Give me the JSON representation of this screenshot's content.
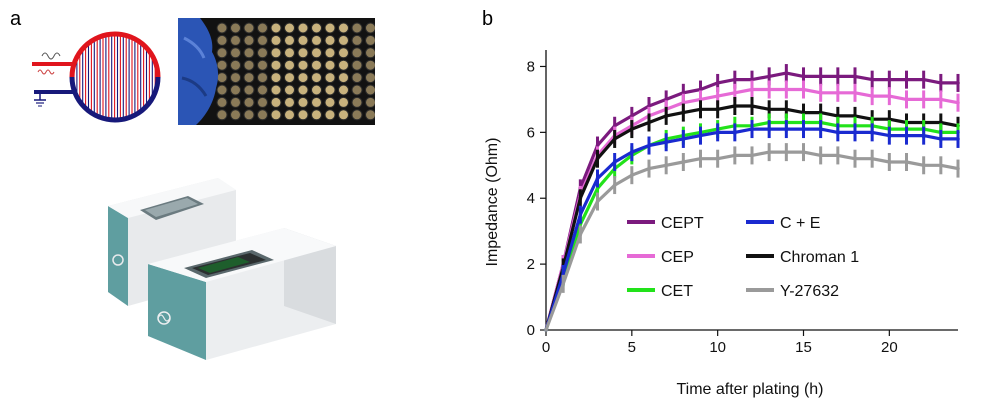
{
  "panels": {
    "a": "a",
    "b": "b"
  },
  "colors": {
    "electrode_top": "#e0151d",
    "electrode_bottom": "#17197a",
    "device_teal": "#5f9ea0",
    "device_white": "#f3f4f5",
    "CEPT": "#7b1a7e",
    "CEP": "#e66ad6",
    "CET": "#22e21a",
    "C + E": "#1a2ad0",
    "Chroman 1": "#111111",
    "Y-27632": "#9a9a9a"
  },
  "chart_data": {
    "type": "line",
    "xlabel": "Time after plating (h)",
    "ylabel": "Impedance (Ohm)",
    "xlim": [
      0,
      24
    ],
    "ylim": [
      0,
      8.5
    ],
    "xticks": [
      0,
      5,
      10,
      15,
      20
    ],
    "yticks": [
      0,
      2,
      4,
      6,
      8
    ],
    "grid": false,
    "legend": {
      "placement": "lower-center",
      "entries": [
        "CEPT",
        "C + E",
        "CEP",
        "Chroman 1",
        "CET",
        "Y-27632"
      ]
    },
    "x": [
      0,
      1,
      2,
      3,
      4,
      5,
      6,
      7,
      8,
      9,
      10,
      11,
      12,
      13,
      14,
      15,
      16,
      17,
      18,
      19,
      20,
      21,
      22,
      23,
      24
    ],
    "series": [
      {
        "name": "CEPT",
        "values": [
          0,
          2.0,
          4.3,
          5.6,
          6.2,
          6.5,
          6.8,
          7.0,
          7.2,
          7.3,
          7.5,
          7.6,
          7.6,
          7.7,
          7.8,
          7.7,
          7.7,
          7.7,
          7.7,
          7.6,
          7.6,
          7.6,
          7.6,
          7.5,
          7.5
        ]
      },
      {
        "name": "CEP",
        "values": [
          0,
          2.0,
          4.1,
          5.3,
          5.9,
          6.2,
          6.5,
          6.7,
          6.9,
          7.0,
          7.1,
          7.2,
          7.3,
          7.3,
          7.3,
          7.3,
          7.2,
          7.2,
          7.2,
          7.1,
          7.1,
          7.0,
          7.0,
          7.0,
          6.9
        ]
      },
      {
        "name": "Chroman 1",
        "values": [
          0,
          1.9,
          4.0,
          5.2,
          5.8,
          6.1,
          6.3,
          6.5,
          6.6,
          6.7,
          6.7,
          6.8,
          6.8,
          6.7,
          6.7,
          6.6,
          6.6,
          6.5,
          6.5,
          6.4,
          6.4,
          6.3,
          6.3,
          6.3,
          6.2
        ]
      },
      {
        "name": "CET",
        "values": [
          0,
          1.6,
          3.2,
          4.3,
          4.9,
          5.3,
          5.6,
          5.8,
          5.9,
          6.0,
          6.1,
          6.2,
          6.2,
          6.3,
          6.3,
          6.3,
          6.3,
          6.2,
          6.2,
          6.2,
          6.1,
          6.1,
          6.1,
          6.0,
          6.0
        ]
      },
      {
        "name": "C + E",
        "values": [
          0,
          1.7,
          3.5,
          4.6,
          5.1,
          5.4,
          5.6,
          5.7,
          5.8,
          5.9,
          6.0,
          6.0,
          6.1,
          6.1,
          6.1,
          6.1,
          6.1,
          6.0,
          6.0,
          6.0,
          5.9,
          5.9,
          5.9,
          5.8,
          5.8
        ]
      },
      {
        "name": "Y-27632",
        "values": [
          0,
          1.4,
          2.9,
          3.9,
          4.4,
          4.7,
          4.9,
          5.0,
          5.1,
          5.2,
          5.2,
          5.3,
          5.3,
          5.4,
          5.4,
          5.4,
          5.3,
          5.3,
          5.2,
          5.2,
          5.1,
          5.1,
          5.0,
          5.0,
          4.9
        ]
      }
    ]
  }
}
